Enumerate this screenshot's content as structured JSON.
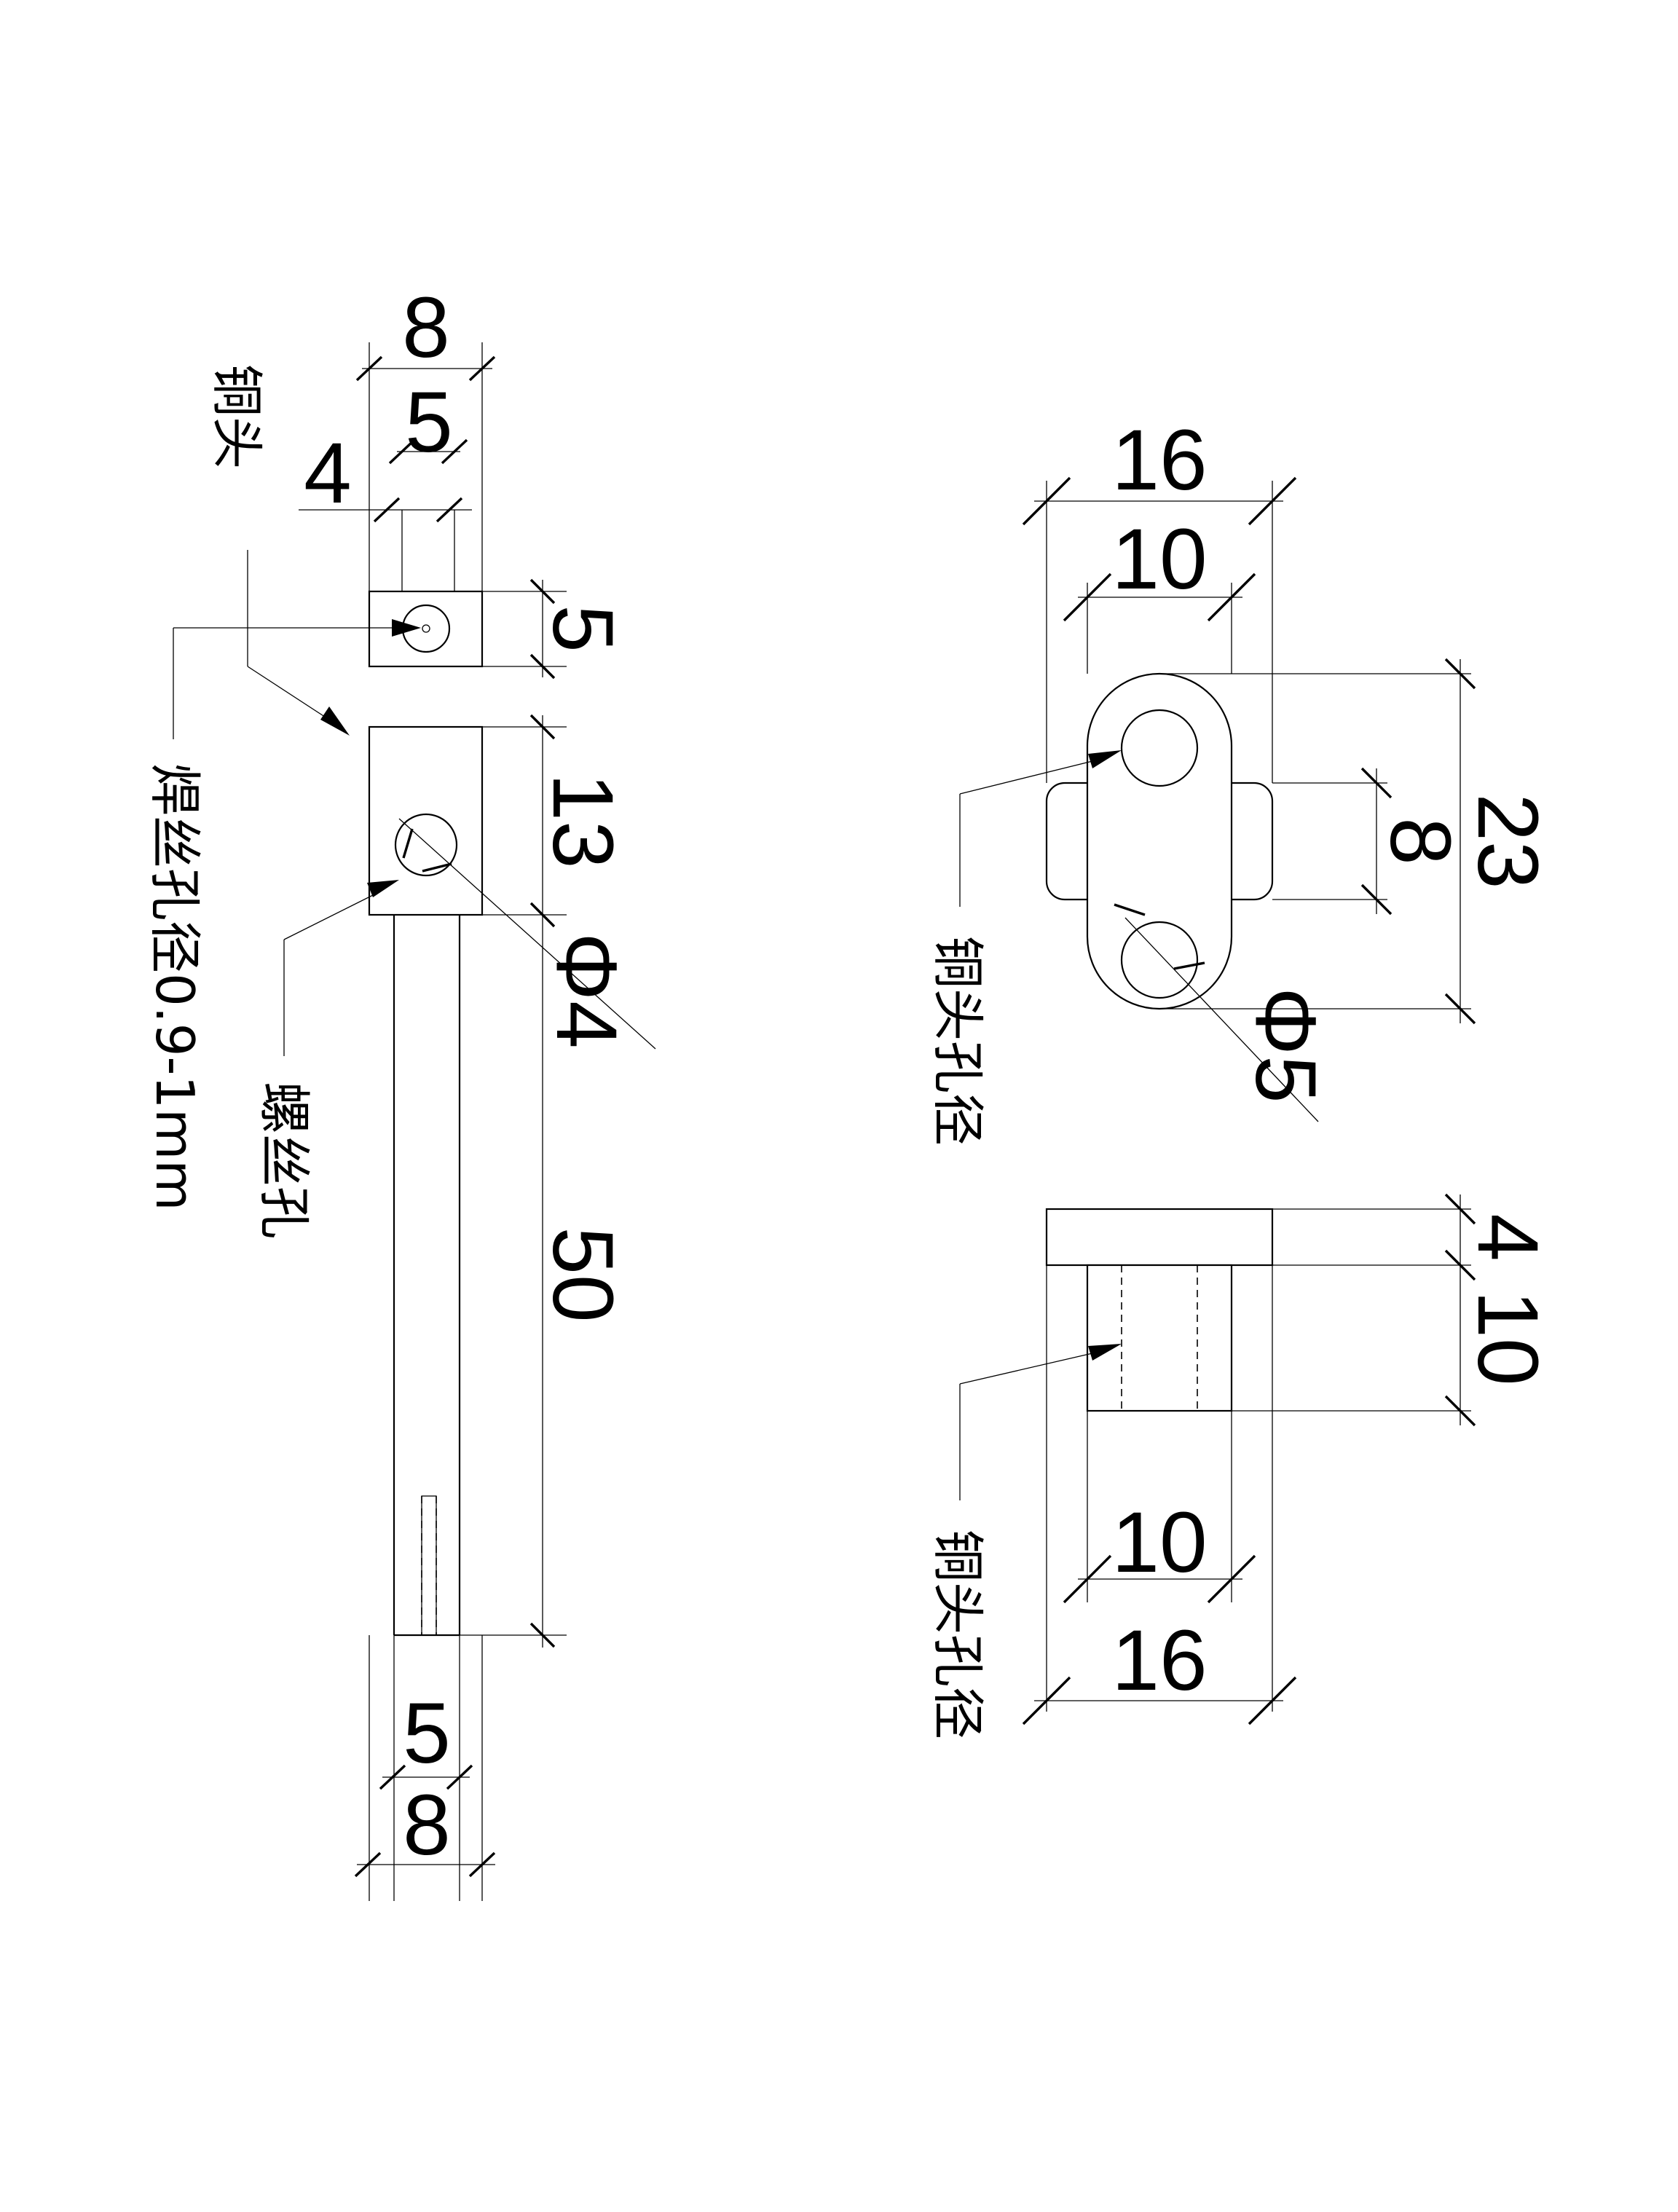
{
  "left_view": {
    "dims": {
      "width_top_outer": "8",
      "width_top_inner": "5",
      "offset_left": "4",
      "head_height": "5",
      "block_height": "13",
      "hole_diameter": "Φ4",
      "rod_length": "50",
      "width_bottom_inner": "5",
      "width_bottom_outer": "8"
    },
    "labels": {
      "copper_head": "铜头",
      "weld_hole": "焊丝孔径0.9-1mm",
      "screw_hole": "螺丝孔"
    }
  },
  "right_view": {
    "dims": {
      "width_outer_top": "16",
      "width_inner_top": "10",
      "overall_length": "23",
      "hole_spacing": "8",
      "hole_diameter": "Φ5",
      "flange_height": "4",
      "body_height": "10",
      "width_inner_bottom": "10",
      "width_outer_bottom": "16"
    },
    "labels": {
      "copper_hole_top": "铜头孔径",
      "copper_hole_bottom": "铜头孔径"
    }
  }
}
